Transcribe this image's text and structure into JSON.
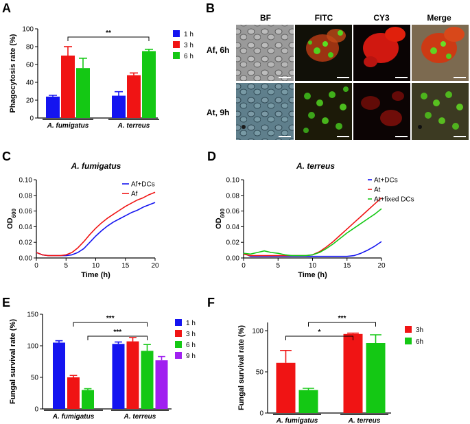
{
  "panel_labels": {
    "A": "A",
    "B": "B",
    "C": "C",
    "D": "D",
    "E": "E",
    "F": "F"
  },
  "colors": {
    "blue": "#1414f0",
    "red": "#f01414",
    "green": "#14c814",
    "purple": "#a020f0",
    "axis": "#000000",
    "scale_bar": "#ffffff"
  },
  "chart_data": [
    {
      "id": "A",
      "type": "bar",
      "title": "",
      "xlabel": "",
      "ylabel": "Phagocytosis rate (%)",
      "ylim": [
        0,
        100
      ],
      "yticks": [
        "0",
        "20",
        "40",
        "60",
        "80",
        "100"
      ],
      "categories": [
        "A. fumigatus",
        "A. terreus"
      ],
      "series": [
        {
          "name": "1 h",
          "color": "#1414f0",
          "values": [
            24,
            25
          ],
          "errors": [
            1.5,
            4.5
          ]
        },
        {
          "name": "3 h",
          "color": "#f01414",
          "values": [
            70,
            48
          ],
          "errors": [
            10,
            2.5
          ]
        },
        {
          "name": "6 h",
          "color": "#14c814",
          "values": [
            56,
            75
          ],
          "errors": [
            11,
            2
          ]
        }
      ],
      "significance": [
        {
          "text": "**",
          "between": [
            "A. fumigatus 3 h",
            "A. terreus 6 h"
          ]
        }
      ],
      "legend_position": "right"
    },
    {
      "id": "C",
      "type": "line",
      "title": "A. fumigatus",
      "xlabel": "Time (h)",
      "ylabel": "OD",
      "ylabel_sub": "600",
      "xlim": [
        0,
        20
      ],
      "ylim": [
        0,
        0.1
      ],
      "xticks": [
        "0",
        "5",
        "10",
        "15",
        "20"
      ],
      "yticks": [
        "0.00",
        "0.02",
        "0.04",
        "0.06",
        "0.08",
        "0.10"
      ],
      "x": [
        0,
        1,
        2,
        3,
        4,
        5,
        6,
        7,
        8,
        9,
        10,
        11,
        12,
        13,
        14,
        15,
        16,
        17,
        18,
        19,
        20
      ],
      "series": [
        {
          "name": "Af+DCs",
          "color": "#1414f0",
          "values": [
            0.007,
            0.004,
            0.003,
            0.003,
            0.003,
            0.003,
            0.004,
            0.007,
            0.012,
            0.02,
            0.028,
            0.035,
            0.041,
            0.046,
            0.05,
            0.054,
            0.058,
            0.061,
            0.065,
            0.068,
            0.071
          ]
        },
        {
          "name": "Af",
          "color": "#f01414",
          "values": [
            0.007,
            0.004,
            0.003,
            0.003,
            0.003,
            0.004,
            0.007,
            0.013,
            0.021,
            0.03,
            0.038,
            0.045,
            0.051,
            0.056,
            0.061,
            0.066,
            0.07,
            0.074,
            0.077,
            0.081,
            0.084
          ]
        }
      ],
      "legend_position": "top-right"
    },
    {
      "id": "D",
      "type": "line",
      "title": "A. terreus",
      "xlabel": "Time (h)",
      "ylabel": "OD",
      "ylabel_sub": "600",
      "xlim": [
        0,
        20
      ],
      "ylim": [
        0,
        0.1
      ],
      "xticks": [
        "0",
        "5",
        "10",
        "15",
        "20"
      ],
      "yticks": [
        "0.00",
        "0.02",
        "0.04",
        "0.06",
        "0.08",
        "0.10"
      ],
      "x": [
        0,
        1,
        2,
        3,
        4,
        5,
        6,
        7,
        8,
        9,
        10,
        11,
        12,
        13,
        14,
        15,
        16,
        17,
        18,
        19,
        20
      ],
      "series": [
        {
          "name": "At+DCs",
          "color": "#1414f0",
          "values": [
            0.006,
            0.002,
            0.002,
            0.002,
            0.002,
            0.002,
            0.002,
            0.002,
            0.002,
            0.002,
            0.002,
            0.002,
            0.002,
            0.002,
            0.002,
            0.002,
            0.003,
            0.006,
            0.01,
            0.015,
            0.021
          ]
        },
        {
          "name": "At",
          "color": "#f01414",
          "values": [
            0.005,
            0.003,
            0.003,
            0.003,
            0.003,
            0.003,
            0.003,
            0.003,
            0.003,
            0.003,
            0.004,
            0.008,
            0.014,
            0.021,
            0.029,
            0.037,
            0.045,
            0.053,
            0.061,
            0.069,
            0.077
          ]
        },
        {
          "name": "At+fixed DCs",
          "color": "#14c814",
          "values": [
            0.006,
            0.005,
            0.007,
            0.009,
            0.007,
            0.006,
            0.004,
            0.003,
            0.003,
            0.003,
            0.004,
            0.007,
            0.012,
            0.018,
            0.025,
            0.032,
            0.038,
            0.044,
            0.05,
            0.056,
            0.063
          ]
        }
      ],
      "legend_position": "top-left"
    },
    {
      "id": "E",
      "type": "bar",
      "title": "",
      "xlabel": "",
      "ylabel": "Fungal survival rate (%)",
      "ylim": [
        0,
        150
      ],
      "yticks": [
        "0",
        "50",
        "100",
        "150"
      ],
      "categories": [
        "A. fumigatus",
        "A. terreus"
      ],
      "series": [
        {
          "name": "1 h",
          "color": "#1414f0",
          "values": [
            105,
            103
          ],
          "errors": [
            3,
            3
          ]
        },
        {
          "name": "3 h",
          "color": "#f01414",
          "values": [
            50,
            107
          ],
          "errors": [
            3,
            6
          ]
        },
        {
          "name": "6 h",
          "color": "#14c814",
          "values": [
            30,
            92
          ],
          "errors": [
            2,
            10
          ]
        },
        {
          "name": "9 h",
          "color": "#a020f0",
          "values": [
            null,
            77
          ],
          "errors": [
            null,
            6
          ]
        }
      ],
      "significance": [
        {
          "text": "***",
          "between": [
            "A. fumigatus 3 h",
            "A. terreus 6 h"
          ]
        },
        {
          "text": "***",
          "between": [
            "A. fumigatus 6 h",
            "A. terreus 6 h"
          ]
        }
      ],
      "legend_position": "right"
    },
    {
      "id": "F",
      "type": "bar",
      "title": "",
      "xlabel": "",
      "ylabel": "Fungal survival  rate (%)",
      "ylim": [
        0,
        110
      ],
      "yticks": [
        "0",
        "50",
        "100"
      ],
      "categories": [
        "A. fumigatus",
        "A. terreus"
      ],
      "series": [
        {
          "name": "3h",
          "color": "#f01414",
          "values": [
            61,
            96
          ],
          "errors": [
            15,
            1
          ]
        },
        {
          "name": "6h",
          "color": "#14c814",
          "values": [
            28,
            85
          ],
          "errors": [
            2,
            10
          ]
        }
      ],
      "significance": [
        {
          "text": "*",
          "between": [
            "A. fumigatus 3h",
            "A. terreus 3h"
          ]
        },
        {
          "text": "***",
          "between": [
            "A. fumigatus 6h",
            "A. terreus 6h"
          ]
        }
      ],
      "legend_position": "right"
    }
  ],
  "micrograph": {
    "columns": [
      "BF",
      "FITC",
      "CY3",
      "Merge"
    ],
    "rows": [
      "Af, 6h",
      "At, 9h"
    ]
  }
}
